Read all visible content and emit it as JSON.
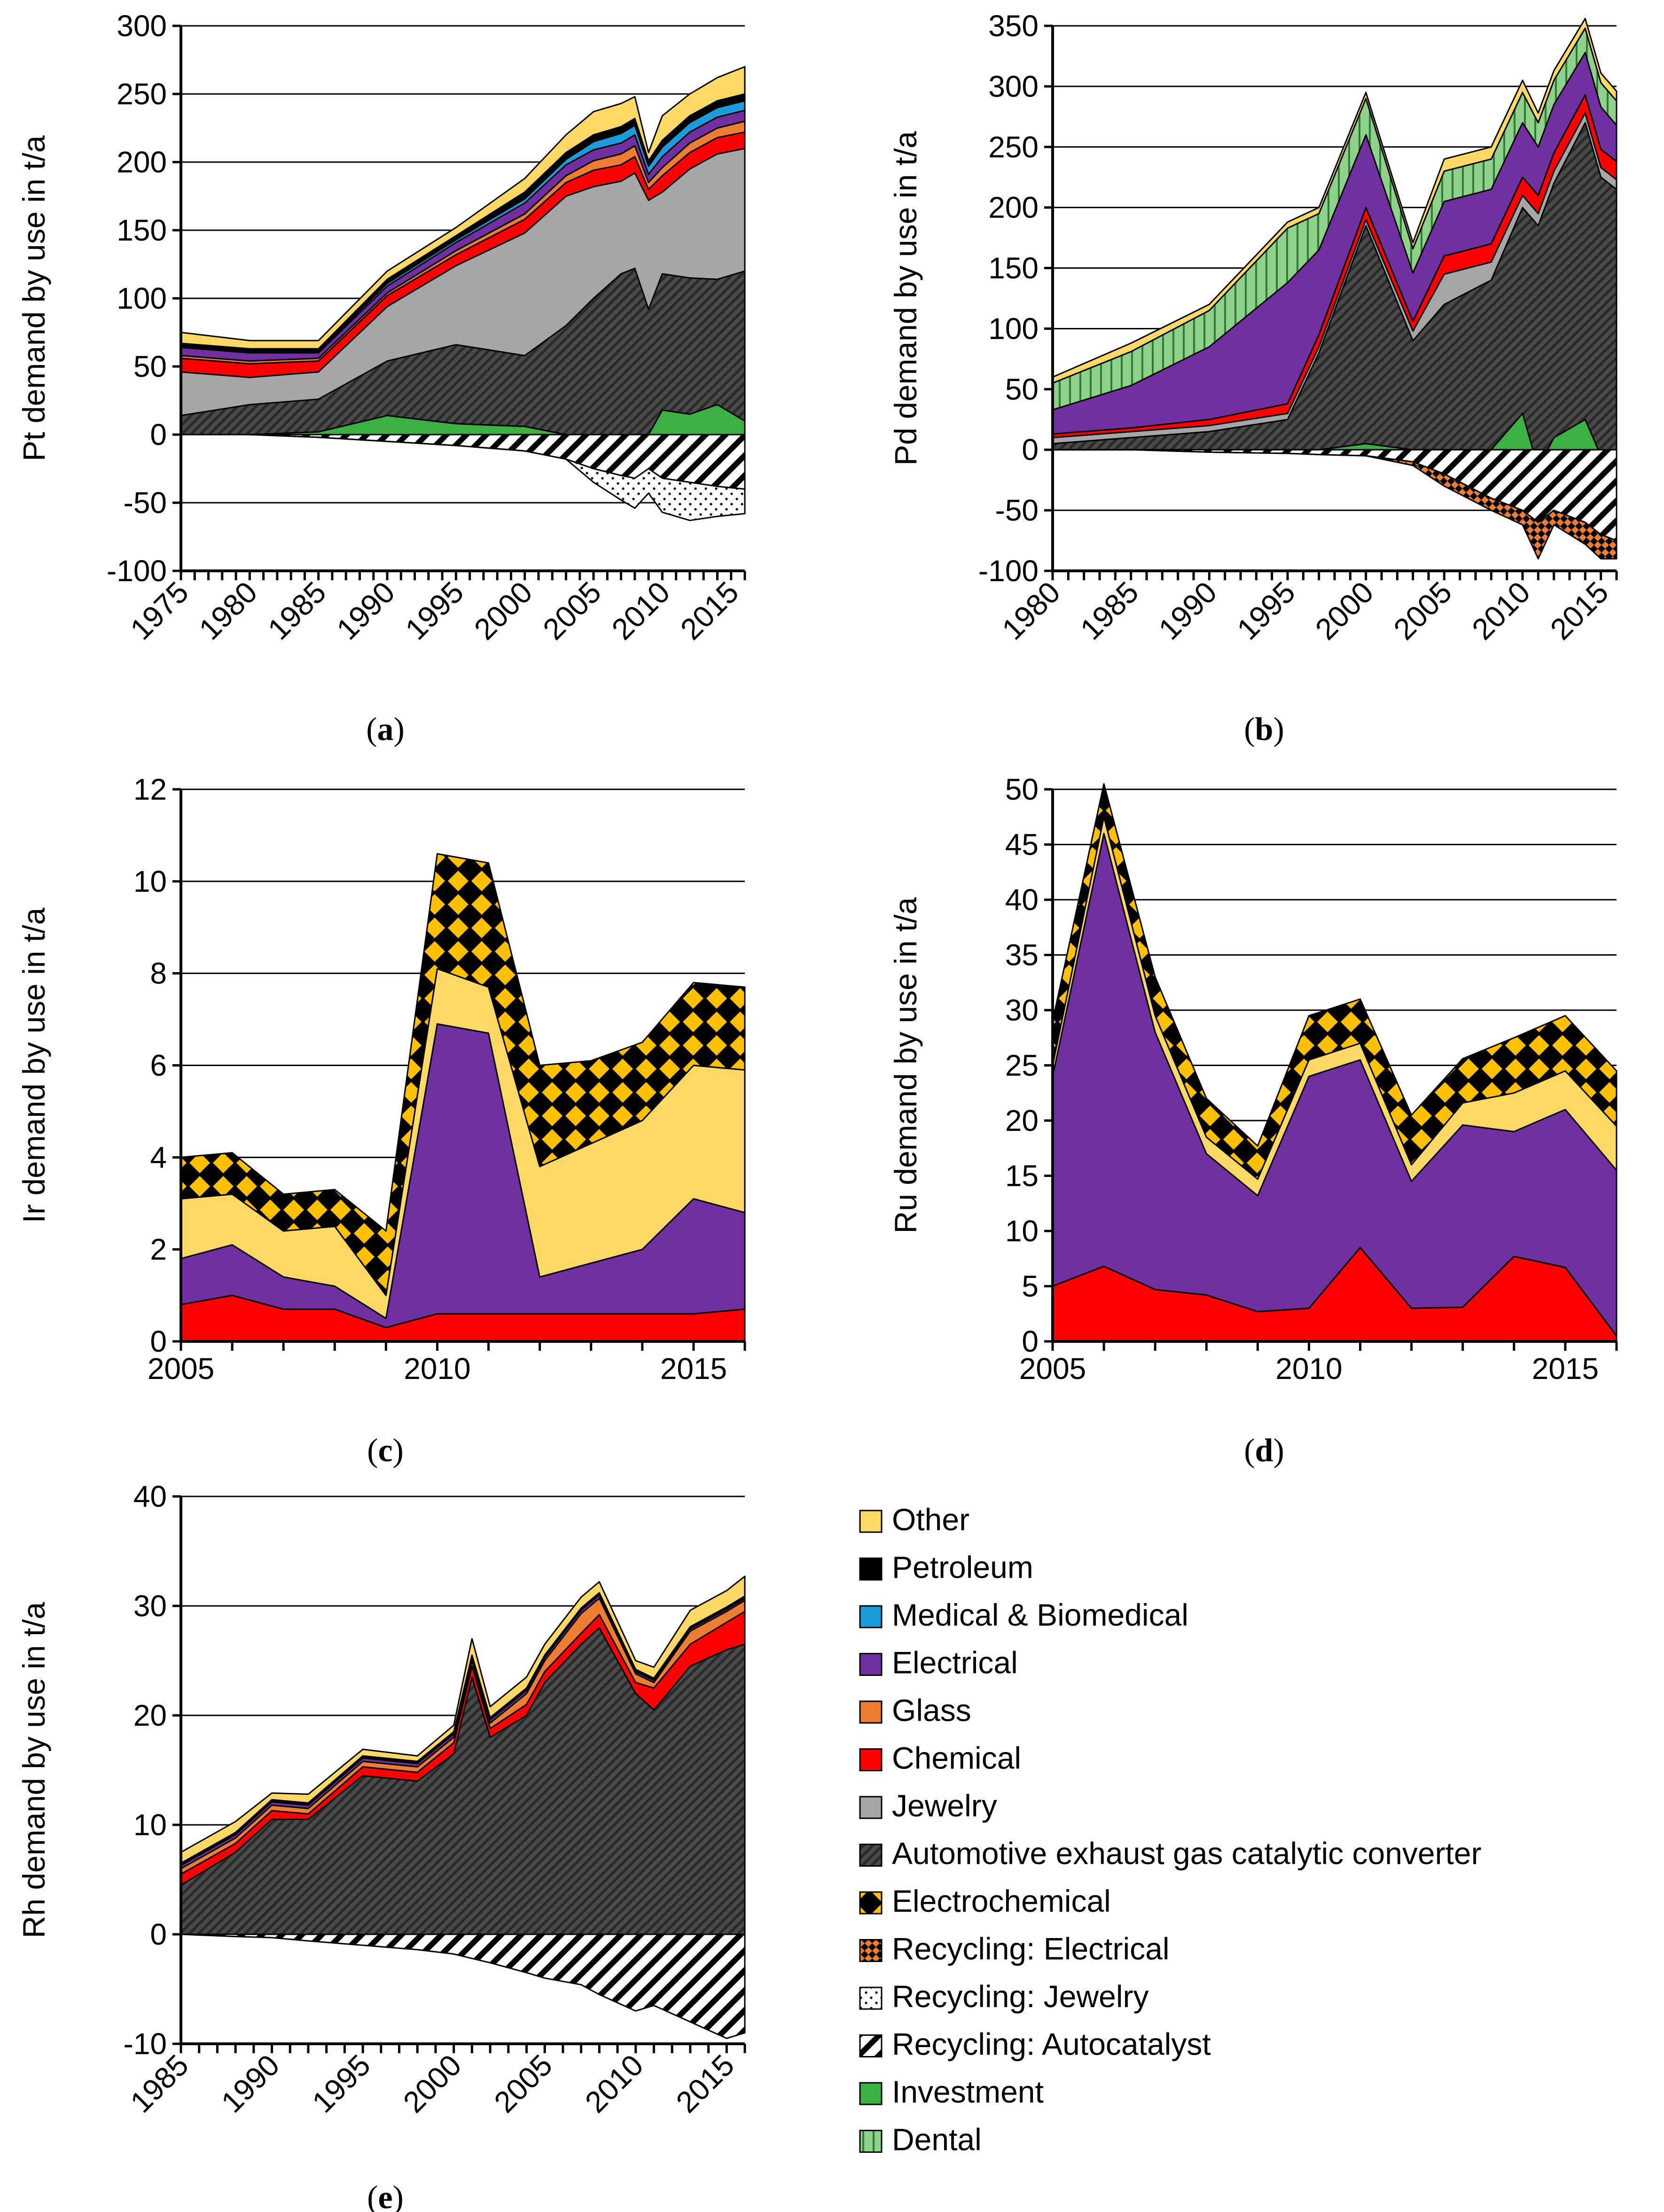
{
  "chart_data": [
    {
      "id": "a",
      "panel_label": "(a)",
      "type": "area",
      "stacked": true,
      "ylabel": "Pt demand by use in t/a",
      "ylim": [
        -100,
        300
      ],
      "yticks": [
        -100,
        -50,
        0,
        50,
        100,
        150,
        200,
        250,
        300
      ],
      "xlim": [
        1975,
        2016
      ],
      "xtick_labels": [
        "1975",
        "1980",
        "1985",
        "1990",
        "1995",
        "2000",
        "2005",
        "2010",
        "2015"
      ],
      "x_label_rotation": 45,
      "x": [
        1975,
        1980,
        1985,
        1990,
        1995,
        2000,
        2003,
        2005,
        2007,
        2008,
        2009,
        2010,
        2012,
        2014,
        2016
      ],
      "series": [
        {
          "name": "Investment",
          "sign": "positive",
          "values": [
            0,
            0,
            2,
            14,
            8,
            6,
            0,
            0,
            0,
            0,
            0,
            18,
            15,
            22,
            10
          ]
        },
        {
          "name": "Automotive exhaust gas catalytic converter",
          "sign": "positive",
          "values": [
            14,
            22,
            24,
            40,
            58,
            52,
            80,
            100,
            118,
            122,
            92,
            100,
            100,
            92,
            110
          ]
        },
        {
          "name": "Jewelry",
          "sign": "positive",
          "values": [
            32,
            20,
            20,
            40,
            58,
            90,
            95,
            82,
            68,
            70,
            80,
            60,
            80,
            92,
            90
          ]
        },
        {
          "name": "Chemical",
          "sign": "positive",
          "values": [
            10,
            10,
            8,
            8,
            8,
            10,
            10,
            12,
            12,
            12,
            8,
            12,
            12,
            12,
            12
          ]
        },
        {
          "name": "Glass",
          "sign": "positive",
          "values": [
            2,
            2,
            2,
            2,
            3,
            4,
            5,
            7,
            8,
            8,
            5,
            6,
            7,
            7,
            8
          ]
        },
        {
          "name": "Electrical",
          "sign": "positive",
          "values": [
            6,
            6,
            4,
            5,
            6,
            8,
            8,
            8,
            8,
            8,
            6,
            8,
            8,
            8,
            8
          ]
        },
        {
          "name": "Medical & Biomedical",
          "sign": "positive",
          "values": [
            1,
            1,
            1,
            2,
            2,
            3,
            4,
            6,
            7,
            7,
            6,
            7,
            7,
            7,
            7
          ]
        },
        {
          "name": "Petroleum",
          "sign": "positive",
          "values": [
            2,
            2,
            2,
            3,
            3,
            5,
            5,
            5,
            5,
            5,
            4,
            5,
            5,
            5,
            5
          ]
        },
        {
          "name": "Other",
          "sign": "positive",
          "values": [
            8,
            6,
            6,
            6,
            6,
            10,
            13,
            17,
            17,
            16,
            6,
            18,
            16,
            17,
            20
          ]
        },
        {
          "name": "Recycling: Autocatalyst",
          "sign": "negative",
          "values": [
            0,
            0,
            -2,
            -5,
            -8,
            -12,
            -18,
            -25,
            -30,
            -32,
            -25,
            -32,
            -35,
            -38,
            -40
          ]
        },
        {
          "name": "Recycling: Jewelry",
          "sign": "negative",
          "values": [
            0,
            0,
            0,
            0,
            0,
            0,
            0,
            -10,
            -18,
            -22,
            -18,
            -25,
            -28,
            -22,
            -18
          ]
        }
      ]
    },
    {
      "id": "b",
      "panel_label": "(b)",
      "type": "area",
      "stacked": true,
      "ylabel": "Pd demand by use in t/a",
      "ylim": [
        -100,
        350
      ],
      "yticks": [
        -100,
        -50,
        0,
        50,
        100,
        150,
        200,
        250,
        300,
        350
      ],
      "xlim": [
        1980,
        2016
      ],
      "xtick_labels": [
        "1980",
        "1985",
        "1990",
        "1995",
        "2000",
        "2005",
        "2010",
        "2015"
      ],
      "x_label_rotation": 45,
      "x": [
        1980,
        1985,
        1990,
        1995,
        1997,
        2000,
        2003,
        2005,
        2008,
        2010,
        2011,
        2012,
        2014,
        2015,
        2016
      ],
      "series": [
        {
          "name": "Investment",
          "sign": "positive",
          "values": [
            0,
            0,
            0,
            0,
            0,
            5,
            0,
            0,
            0,
            30,
            -15,
            10,
            25,
            -5,
            -15
          ]
        },
        {
          "name": "Automotive exhaust gas catalytic converter",
          "sign": "positive",
          "values": [
            5,
            10,
            15,
            25,
            80,
            180,
            90,
            120,
            140,
            170,
            200,
            210,
            245,
            230,
            230
          ]
        },
        {
          "name": "Jewelry",
          "sign": "positive",
          "values": [
            5,
            5,
            5,
            5,
            5,
            5,
            8,
            25,
            15,
            10,
            10,
            10,
            8,
            8,
            8
          ]
        },
        {
          "name": "Chemical",
          "sign": "positive",
          "values": [
            3,
            3,
            5,
            8,
            10,
            10,
            8,
            15,
            15,
            15,
            15,
            15,
            15,
            15,
            15
          ]
        },
        {
          "name": "Electrical",
          "sign": "positive",
          "values": [
            20,
            35,
            60,
            100,
            70,
            60,
            40,
            45,
            45,
            45,
            40,
            40,
            35,
            35,
            30
          ]
        },
        {
          "name": "Dental",
          "sign": "positive",
          "values": [
            22,
            28,
            30,
            45,
            30,
            30,
            20,
            25,
            25,
            25,
            20,
            20,
            20,
            20,
            20
          ]
        },
        {
          "name": "Other",
          "sign": "positive",
          "values": [
            5,
            7,
            5,
            5,
            5,
            5,
            5,
            10,
            10,
            10,
            8,
            8,
            8,
            8,
            8
          ]
        },
        {
          "name": "Recycling: Autocatalyst",
          "sign": "negative",
          "values": [
            0,
            0,
            -2,
            -3,
            -4,
            -5,
            -10,
            -20,
            -40,
            -50,
            -60,
            -50,
            -60,
            -70,
            -75
          ]
        },
        {
          "name": "Recycling: Electrical",
          "sign": "negative",
          "values": [
            0,
            0,
            0,
            0,
            0,
            0,
            -3,
            -10,
            -10,
            -12,
            -30,
            -12,
            -18,
            -20,
            -15
          ]
        }
      ]
    },
    {
      "id": "c",
      "panel_label": "(c)",
      "type": "area",
      "stacked": true,
      "ylabel": "Ir  demand by use in t/a",
      "ylim": [
        0,
        12
      ],
      "yticks": [
        0,
        2,
        4,
        6,
        8,
        10,
        12
      ],
      "xlim": [
        2005,
        2016
      ],
      "xtick_labels": [
        "2005",
        "2010",
        "2015"
      ],
      "x_label_rotation": 0,
      "x": [
        2005,
        2006,
        2007,
        2008,
        2009,
        2010,
        2011,
        2012,
        2013,
        2014,
        2015,
        2016
      ],
      "series": [
        {
          "name": "Chemical",
          "sign": "positive",
          "values": [
            0.8,
            1.0,
            0.7,
            0.7,
            0.3,
            0.6,
            0.6,
            0.6,
            0.6,
            0.6,
            0.6,
            0.7
          ]
        },
        {
          "name": "Electrical",
          "sign": "positive",
          "values": [
            1.0,
            1.1,
            0.7,
            0.5,
            0.2,
            6.3,
            6.1,
            0.8,
            1.1,
            1.4,
            2.5,
            2.1
          ]
        },
        {
          "name": "Other",
          "sign": "positive",
          "values": [
            1.3,
            1.1,
            1.0,
            1.3,
            0.5,
            1.2,
            1.0,
            2.4,
            2.6,
            2.8,
            2.9,
            3.1
          ]
        },
        {
          "name": "Electrochemical",
          "sign": "positive",
          "values": [
            0.9,
            0.9,
            0.8,
            0.8,
            1.4,
            2.5,
            2.7,
            2.2,
            1.8,
            1.7,
            1.8,
            1.8
          ]
        }
      ]
    },
    {
      "id": "d",
      "panel_label": "(d)",
      "type": "area",
      "stacked": true,
      "ylabel": "Ru demand by use in t/a",
      "ylim": [
        0,
        50
      ],
      "yticks": [
        0,
        5,
        10,
        15,
        20,
        25,
        30,
        35,
        40,
        45,
        50
      ],
      "xlim": [
        2005,
        2016
      ],
      "xtick_labels": [
        "2005",
        "2010",
        "2015"
      ],
      "x_label_rotation": 0,
      "x": [
        2005,
        2006,
        2007,
        2008,
        2009,
        2010,
        2011,
        2012,
        2013,
        2014,
        2015,
        2016
      ],
      "series": [
        {
          "name": "Chemical",
          "sign": "positive",
          "values": [
            5.0,
            6.8,
            4.7,
            4.2,
            2.7,
            3.0,
            8.5,
            3.0,
            3.1,
            7.7,
            6.7,
            0.5
          ]
        },
        {
          "name": "Electrical",
          "sign": "positive",
          "values": [
            19.0,
            39.2,
            23.3,
            12.8,
            10.5,
            21.0,
            17.0,
            11.5,
            16.5,
            11.3,
            14.3,
            15.0
          ]
        },
        {
          "name": "Other",
          "sign": "positive",
          "values": [
            1.0,
            1.5,
            1.5,
            1.5,
            1.5,
            1.5,
            1.5,
            1.5,
            2.0,
            3.5,
            3.5,
            4.0
          ]
        },
        {
          "name": "Electrochemical",
          "sign": "positive",
          "values": [
            4.0,
            3.0,
            3.5,
            3.5,
            3.0,
            4.0,
            4.0,
            4.5,
            4.0,
            5.0,
            5.0,
            5.0
          ]
        }
      ]
    },
    {
      "id": "e",
      "panel_label": "(e)",
      "type": "area",
      "stacked": true,
      "ylabel": "Rh demand by use in t/a",
      "ylim": [
        -10,
        40
      ],
      "yticks": [
        -10,
        0,
        10,
        20,
        30,
        40
      ],
      "xlim": [
        1985,
        2016
      ],
      "xtick_labels": [
        "1985",
        "1990",
        "1995",
        "2000",
        "2005",
        "2010",
        "2015"
      ],
      "x_label_rotation": 45,
      "x": [
        1985,
        1988,
        1990,
        1992,
        1995,
        1998,
        2000,
        2001,
        2002,
        2004,
        2005,
        2007,
        2008,
        2010,
        2011,
        2013,
        2015,
        2016
      ],
      "series": [
        {
          "name": "Automotive exhaust gas catalytic converter",
          "sign": "positive",
          "values": [
            4.5,
            7.5,
            10.5,
            10.5,
            14.5,
            14.0,
            16.5,
            23.5,
            18.0,
            20.0,
            23.0,
            26.5,
            28.0,
            22.0,
            20.5,
            24.5,
            26.0,
            26.5
          ]
        },
        {
          "name": "Chemical",
          "sign": "positive",
          "values": [
            1.0,
            0.8,
            0.8,
            0.5,
            0.8,
            0.8,
            1.0,
            1.0,
            0.8,
            1.0,
            1.0,
            1.0,
            1.2,
            1.0,
            2.0,
            2.0,
            2.5,
            3.0
          ]
        },
        {
          "name": "Glass",
          "sign": "positive",
          "values": [
            0.5,
            0.5,
            0.5,
            0.5,
            0.5,
            0.5,
            0.5,
            0.5,
            0.5,
            1.0,
            1.0,
            1.8,
            1.5,
            0.8,
            0.5,
            1.2,
            1.0,
            1.0
          ]
        },
        {
          "name": "Electrical",
          "sign": "positive",
          "values": [
            0.3,
            0.3,
            0.3,
            0.3,
            0.3,
            0.3,
            0.3,
            0.3,
            0.3,
            0.3,
            0.3,
            0.3,
            0.3,
            0.2,
            0.2,
            0.2,
            0.2,
            0.2
          ]
        },
        {
          "name": "Petroleum",
          "sign": "positive",
          "values": [
            0.2,
            0.2,
            0.2,
            0.2,
            0.2,
            0.2,
            0.2,
            0.2,
            0.2,
            0.2,
            0.2,
            0.2,
            0.2,
            0.2,
            0.2,
            0.2,
            0.2,
            0.2
          ]
        },
        {
          "name": "Other",
          "sign": "positive",
          "values": [
            1.0,
            1.0,
            0.6,
            0.8,
            0.6,
            0.5,
            0.6,
            1.5,
            1.0,
            1.0,
            1.0,
            1.0,
            1.0,
            0.8,
            1.0,
            1.5,
            1.5,
            1.8
          ]
        },
        {
          "name": "Recycling: Autocatalyst",
          "sign": "negative",
          "values": [
            0,
            -0.2,
            -0.3,
            -0.6,
            -1.0,
            -1.4,
            -1.8,
            -2.2,
            -2.6,
            -3.5,
            -4.0,
            -4.6,
            -5.5,
            -7.0,
            -6.5,
            -8.0,
            -9.5,
            -9.0
          ]
        }
      ]
    }
  ],
  "legend": {
    "items": [
      {
        "name": "Other",
        "key": "Other"
      },
      {
        "name": "Petroleum",
        "key": "Petroleum"
      },
      {
        "name": "Medical & Biomedical",
        "key": "Medical & Biomedical"
      },
      {
        "name": "Electrical",
        "key": "Electrical"
      },
      {
        "name": "Glass",
        "key": "Glass"
      },
      {
        "name": "Chemical",
        "key": "Chemical"
      },
      {
        "name": "Jewelry",
        "key": "Jewelry"
      },
      {
        "name": "Automotive exhaust gas catalytic converter",
        "key": "Automotive exhaust gas catalytic converter"
      },
      {
        "name": "Electrochemical",
        "key": "Electrochemical"
      },
      {
        "name": "Recycling: Electrical",
        "key": "Recycling: Electrical"
      },
      {
        "name": "Recycling: Jewelry",
        "key": "Recycling: Jewelry"
      },
      {
        "name": "Recycling: Autocatalyst",
        "key": "Recycling: Autocatalyst"
      },
      {
        "name": "Investment",
        "key": "Investment"
      },
      {
        "name": "Dental",
        "key": "Dental"
      }
    ]
  },
  "colors": {
    "Other": "#FFD966",
    "Petroleum": "#000000",
    "Medical & Biomedical": "#1B9DDB",
    "Electrical": "#7030A0",
    "Glass": "#ED7D31",
    "Chemical": "#FF0000",
    "Jewelry": "#A6A6A6",
    "Automotive exhaust gas catalytic converter": "#3F3F3F",
    "Electrochemical": "#FFC000",
    "Recycling: Electrical": "#ED7D31",
    "Recycling: Jewelry": "#FFFFFF",
    "Recycling: Autocatalyst": "#FFFFFF",
    "Investment": "#3CB043",
    "Dental": "#8FD18B"
  }
}
